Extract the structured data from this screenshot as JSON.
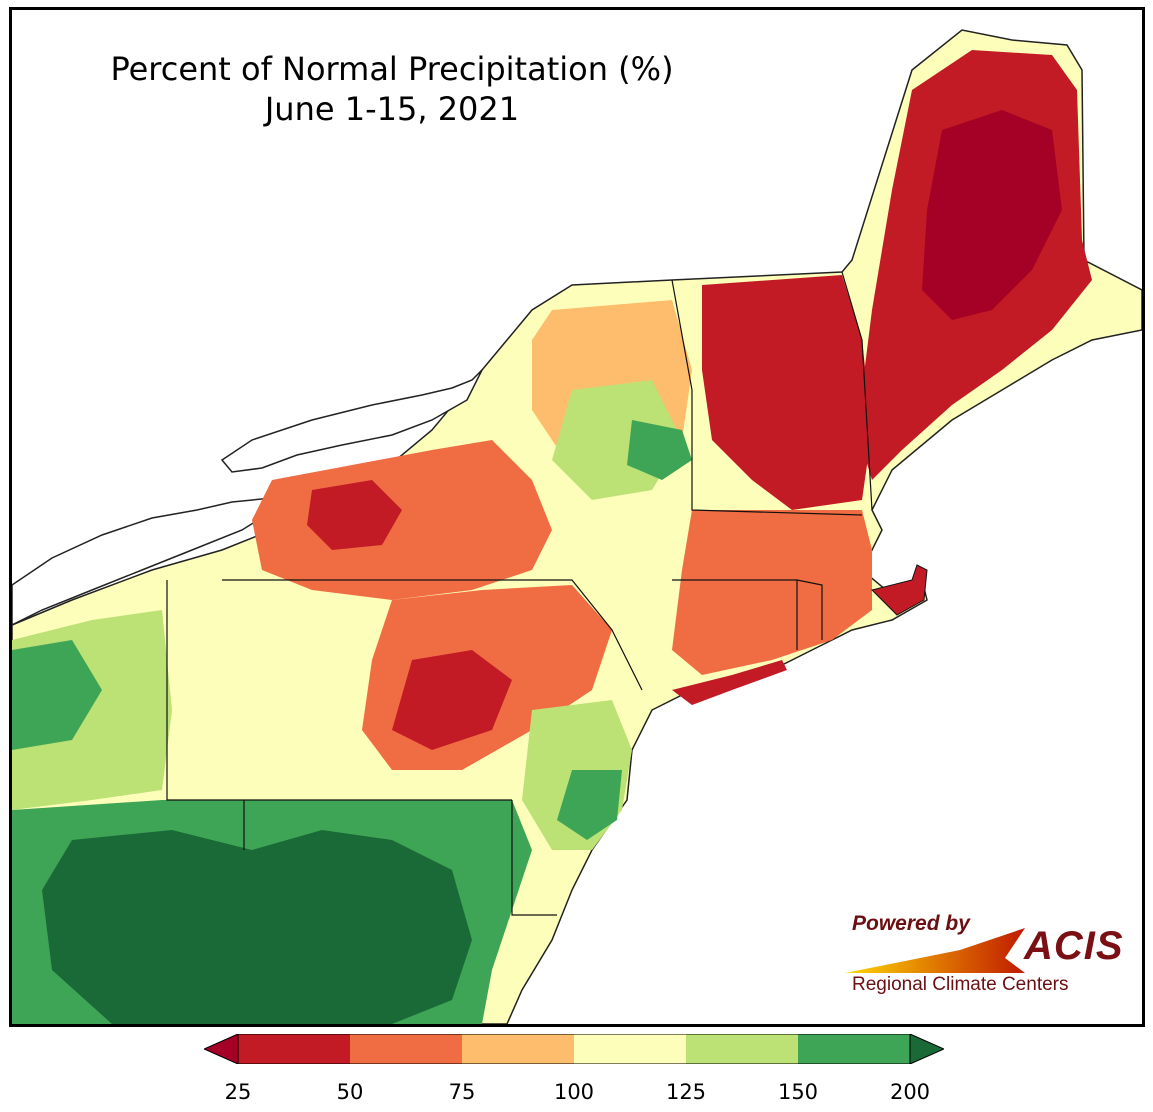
{
  "title": {
    "line1": "Percent of Normal Precipitation (%)",
    "line2": "June 1-15, 2021"
  },
  "colorbar": {
    "ticks": [
      "25",
      "50",
      "75",
      "100",
      "125",
      "150",
      "200"
    ],
    "bins": [
      {
        "from": 25,
        "to": 50,
        "color": "#c21b25"
      },
      {
        "from": 50,
        "to": 75,
        "color": "#f06c43"
      },
      {
        "from": 75,
        "to": 100,
        "color": "#fdbd6c"
      },
      {
        "from": 100,
        "to": 125,
        "color": "#fefebb"
      },
      {
        "from": 125,
        "to": 150,
        "color": "#bce276"
      },
      {
        "from": 150,
        "to": 200,
        "color": "#3fa556"
      }
    ],
    "under_color": "#a50026",
    "over_color": "#1a6a37"
  },
  "logo": {
    "powered_by": "Powered by",
    "brand": "ACIS",
    "tagline": "Regional Climate Centers"
  },
  "colors": {
    "very_dry": "#a50026",
    "dry": "#c21b25",
    "below": "#f06c43",
    "slightly_below": "#fdbd6c",
    "near_normal": "#fefebb",
    "above": "#bce276",
    "wet": "#3fa556",
    "very_wet": "#1a6a37"
  }
}
